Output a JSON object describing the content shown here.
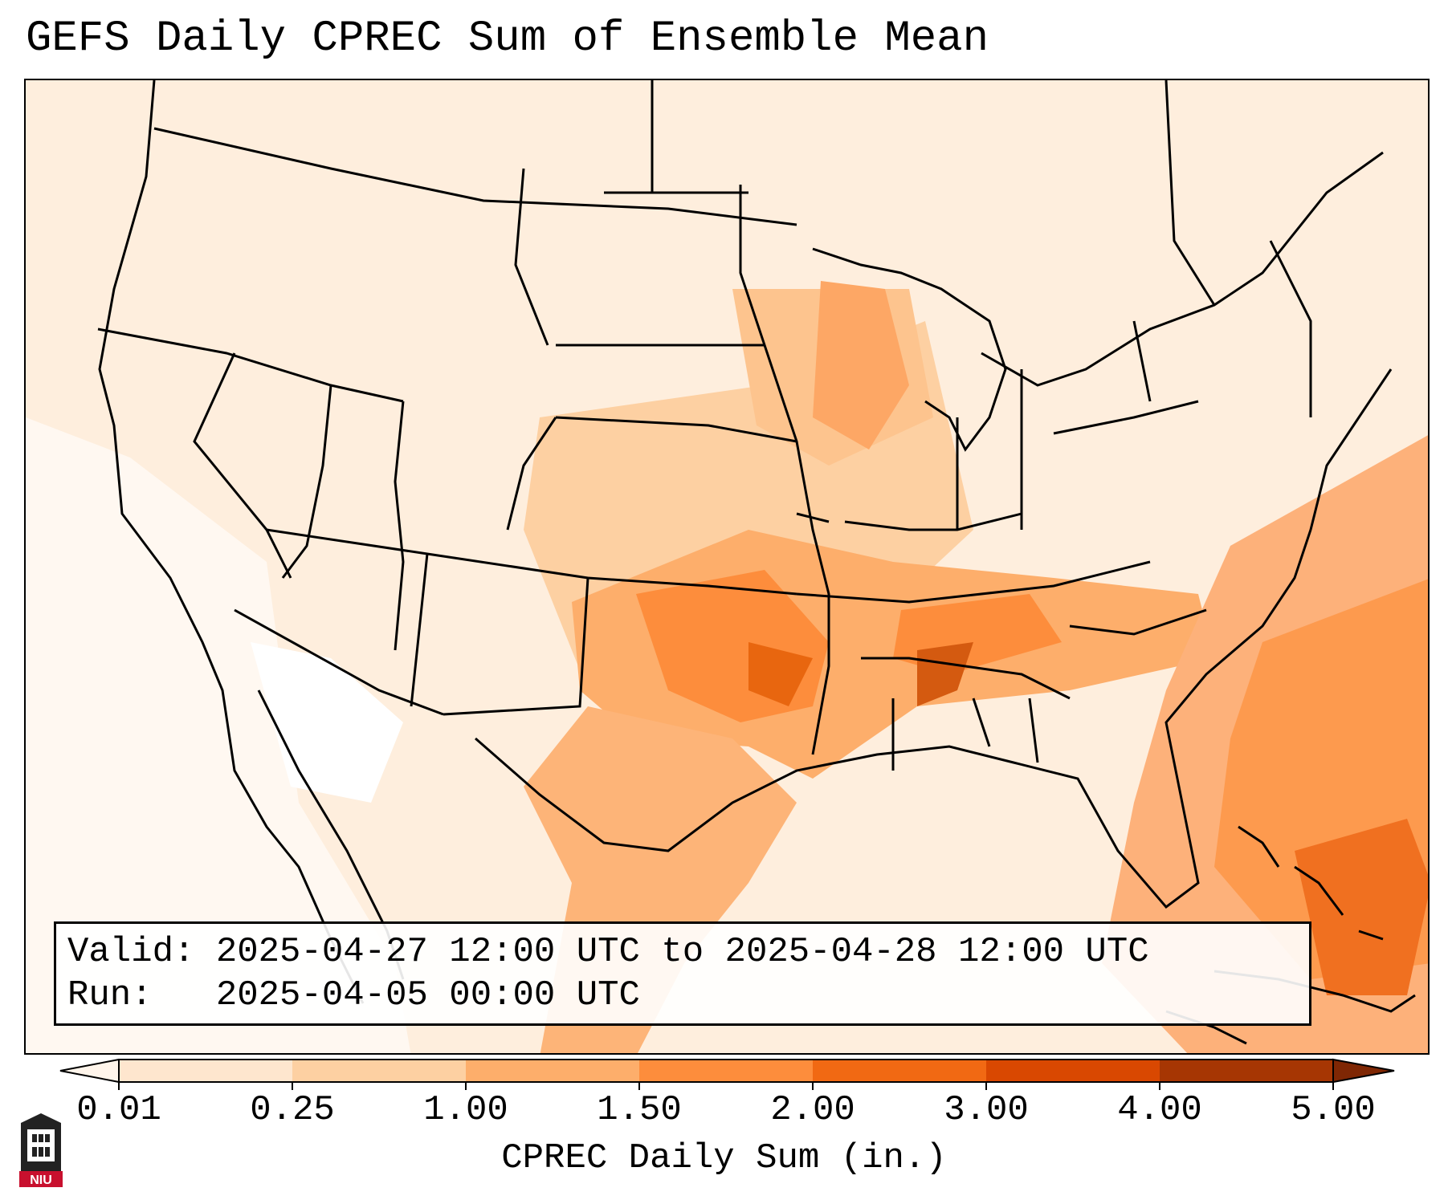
{
  "title": "GEFS Daily CPREC Sum of Ensemble Mean",
  "info": {
    "valid_label": "Valid:",
    "valid_value": "2025-04-27 12:00 UTC to 2025-04-28 12:00 UTC",
    "run_label": "Run:",
    "run_value": "2025-04-05 00:00 UTC"
  },
  "colorbar": {
    "label": "CPREC Daily Sum (in.)",
    "ticks": [
      "0.01",
      "0.25",
      "1.00",
      "1.50",
      "2.00",
      "3.00",
      "4.00",
      "5.00"
    ],
    "colors": [
      "#fff5eb",
      "#fee6ce",
      "#fdd0a2",
      "#fdae6b",
      "#fd8d3c",
      "#f16913",
      "#d94801",
      "#a63603"
    ]
  },
  "logo": {
    "text": "NIU"
  }
}
